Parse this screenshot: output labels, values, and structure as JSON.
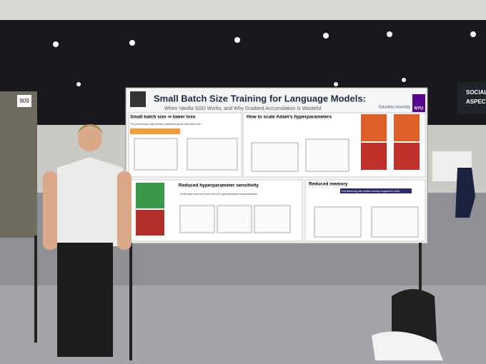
{
  "sign_number": "909",
  "banner": [
    "SOCIAL",
    "ASPECTS"
  ],
  "poster": {
    "title": "Small Batch Size Training for Language Models:",
    "subtitle": "When Vanilla SGD Works, and Why Gradient Accumulation Is Wasteful",
    "affiliations": [
      "Columbia University",
      "NYU"
    ],
    "sections": [
      {
        "heading": "Small batch size ⇒ lower loss",
        "text": "The performance gap between optimizers grows with batch size"
      },
      {
        "heading": "How to scale Adam's hyperparameters",
        "text": ""
      },
      {
        "heading": "Reduced hyperparameter sensitivity",
        "text": "Small batch sizes are more robust to hyperparameter misspecification"
      },
      {
        "heading": "Reduced memory",
        "text": "Full-finetuning with similar memory footprint to LoRA"
      }
    ]
  }
}
